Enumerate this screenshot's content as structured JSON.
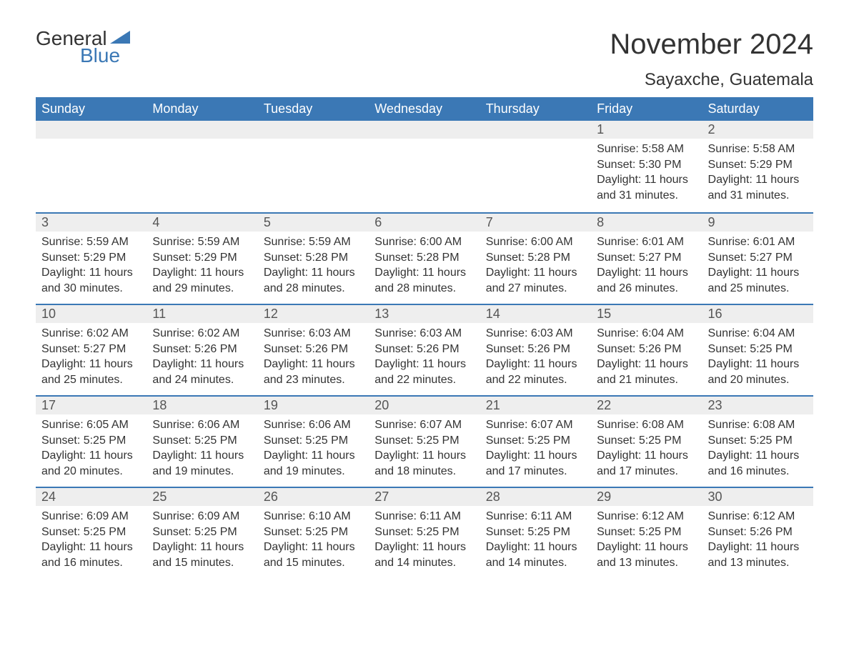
{
  "brand": {
    "wordA": "General",
    "wordB": "Blue",
    "accent_color": "#3b78b5"
  },
  "title": "November 2024",
  "location": "Sayaxche, Guatemala",
  "colors": {
    "header_bg": "#3b78b5",
    "header_text": "#ffffff",
    "daynum_bg": "#eeeeee",
    "daynum_text": "#555555",
    "text": "#333333",
    "page_bg": "#ffffff"
  },
  "weekdays": [
    "Sunday",
    "Monday",
    "Tuesday",
    "Wednesday",
    "Thursday",
    "Friday",
    "Saturday"
  ],
  "weeks": [
    [
      null,
      null,
      null,
      null,
      null,
      {
        "n": "1",
        "sr": "5:58 AM",
        "ss": "5:30 PM",
        "dl": "11 hours and 31 minutes."
      },
      {
        "n": "2",
        "sr": "5:58 AM",
        "ss": "5:29 PM",
        "dl": "11 hours and 31 minutes."
      }
    ],
    [
      {
        "n": "3",
        "sr": "5:59 AM",
        "ss": "5:29 PM",
        "dl": "11 hours and 30 minutes."
      },
      {
        "n": "4",
        "sr": "5:59 AM",
        "ss": "5:29 PM",
        "dl": "11 hours and 29 minutes."
      },
      {
        "n": "5",
        "sr": "5:59 AM",
        "ss": "5:28 PM",
        "dl": "11 hours and 28 minutes."
      },
      {
        "n": "6",
        "sr": "6:00 AM",
        "ss": "5:28 PM",
        "dl": "11 hours and 28 minutes."
      },
      {
        "n": "7",
        "sr": "6:00 AM",
        "ss": "5:28 PM",
        "dl": "11 hours and 27 minutes."
      },
      {
        "n": "8",
        "sr": "6:01 AM",
        "ss": "5:27 PM",
        "dl": "11 hours and 26 minutes."
      },
      {
        "n": "9",
        "sr": "6:01 AM",
        "ss": "5:27 PM",
        "dl": "11 hours and 25 minutes."
      }
    ],
    [
      {
        "n": "10",
        "sr": "6:02 AM",
        "ss": "5:27 PM",
        "dl": "11 hours and 25 minutes."
      },
      {
        "n": "11",
        "sr": "6:02 AM",
        "ss": "5:26 PM",
        "dl": "11 hours and 24 minutes."
      },
      {
        "n": "12",
        "sr": "6:03 AM",
        "ss": "5:26 PM",
        "dl": "11 hours and 23 minutes."
      },
      {
        "n": "13",
        "sr": "6:03 AM",
        "ss": "5:26 PM",
        "dl": "11 hours and 22 minutes."
      },
      {
        "n": "14",
        "sr": "6:03 AM",
        "ss": "5:26 PM",
        "dl": "11 hours and 22 minutes."
      },
      {
        "n": "15",
        "sr": "6:04 AM",
        "ss": "5:26 PM",
        "dl": "11 hours and 21 minutes."
      },
      {
        "n": "16",
        "sr": "6:04 AM",
        "ss": "5:25 PM",
        "dl": "11 hours and 20 minutes."
      }
    ],
    [
      {
        "n": "17",
        "sr": "6:05 AM",
        "ss": "5:25 PM",
        "dl": "11 hours and 20 minutes."
      },
      {
        "n": "18",
        "sr": "6:06 AM",
        "ss": "5:25 PM",
        "dl": "11 hours and 19 minutes."
      },
      {
        "n": "19",
        "sr": "6:06 AM",
        "ss": "5:25 PM",
        "dl": "11 hours and 19 minutes."
      },
      {
        "n": "20",
        "sr": "6:07 AM",
        "ss": "5:25 PM",
        "dl": "11 hours and 18 minutes."
      },
      {
        "n": "21",
        "sr": "6:07 AM",
        "ss": "5:25 PM",
        "dl": "11 hours and 17 minutes."
      },
      {
        "n": "22",
        "sr": "6:08 AM",
        "ss": "5:25 PM",
        "dl": "11 hours and 17 minutes."
      },
      {
        "n": "23",
        "sr": "6:08 AM",
        "ss": "5:25 PM",
        "dl": "11 hours and 16 minutes."
      }
    ],
    [
      {
        "n": "24",
        "sr": "6:09 AM",
        "ss": "5:25 PM",
        "dl": "11 hours and 16 minutes."
      },
      {
        "n": "25",
        "sr": "6:09 AM",
        "ss": "5:25 PM",
        "dl": "11 hours and 15 minutes."
      },
      {
        "n": "26",
        "sr": "6:10 AM",
        "ss": "5:25 PM",
        "dl": "11 hours and 15 minutes."
      },
      {
        "n": "27",
        "sr": "6:11 AM",
        "ss": "5:25 PM",
        "dl": "11 hours and 14 minutes."
      },
      {
        "n": "28",
        "sr": "6:11 AM",
        "ss": "5:25 PM",
        "dl": "11 hours and 14 minutes."
      },
      {
        "n": "29",
        "sr": "6:12 AM",
        "ss": "5:25 PM",
        "dl": "11 hours and 13 minutes."
      },
      {
        "n": "30",
        "sr": "6:12 AM",
        "ss": "5:26 PM",
        "dl": "11 hours and 13 minutes."
      }
    ]
  ],
  "labels": {
    "sunrise": "Sunrise:",
    "sunset": "Sunset:",
    "daylight": "Daylight:"
  }
}
